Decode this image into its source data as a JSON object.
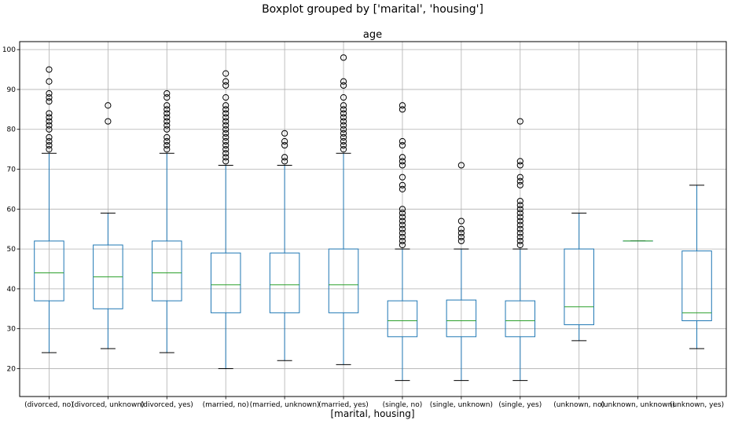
{
  "chart_data": {
    "type": "box",
    "title": "Boxplot grouped by ['marital', 'housing']",
    "subtitle": "age",
    "xlabel": "[marital, housing]",
    "ylabel": "",
    "ylim": [
      13,
      102
    ],
    "yticks": [
      20,
      30,
      40,
      50,
      60,
      70,
      80,
      90,
      100
    ],
    "grid": true,
    "colors": {
      "box": "#1f77b4",
      "median": "#2ca02c",
      "cap": "#000000",
      "flier": "#000000",
      "grid": "#b0b0b0"
    },
    "categories": [
      "(divorced, no)",
      "(divorced, unknown)",
      "(divorced, yes)",
      "(married, no)",
      "(married, unknown)",
      "(married, yes)",
      "(single, no)",
      "(single, unknown)",
      "(single, yes)",
      "(unknown, no)",
      "(unknown, unknown)",
      "(unknown, yes)"
    ],
    "boxes": [
      {
        "whislo": 24,
        "q1": 37,
        "med": 44,
        "q3": 52,
        "whishi": 74,
        "fliers": [
          75,
          76,
          77,
          78,
          80,
          81,
          82,
          83,
          84,
          87,
          88,
          89,
          92,
          95
        ]
      },
      {
        "whislo": 25,
        "q1": 35,
        "med": 43,
        "q3": 51,
        "whishi": 59,
        "fliers": [
          82,
          86
        ]
      },
      {
        "whislo": 24,
        "q1": 37,
        "med": 44,
        "q3": 52,
        "whishi": 74,
        "fliers": [
          75,
          76,
          77,
          78,
          80,
          81,
          82,
          83,
          84,
          85,
          86,
          88,
          89
        ]
      },
      {
        "whislo": 20,
        "q1": 34,
        "med": 41,
        "q3": 49,
        "whishi": 71,
        "fliers": [
          72,
          73,
          74,
          75,
          76,
          77,
          78,
          79,
          80,
          81,
          82,
          83,
          84,
          85,
          86,
          88,
          91,
          92,
          94
        ]
      },
      {
        "whislo": 22,
        "q1": 34,
        "med": 41,
        "q3": 49,
        "whishi": 71,
        "fliers": [
          72,
          73,
          76,
          77,
          79
        ]
      },
      {
        "whislo": 21,
        "q1": 34,
        "med": 41,
        "q3": 50,
        "whishi": 74,
        "fliers": [
          75,
          76,
          77,
          78,
          79,
          80,
          81,
          82,
          83,
          84,
          85,
          86,
          88,
          91,
          92,
          98
        ]
      },
      {
        "whislo": 17,
        "q1": 28,
        "med": 32,
        "q3": 37,
        "whishi": 50,
        "fliers": [
          51,
          52,
          53,
          54,
          55,
          56,
          57,
          58,
          59,
          60,
          65,
          66,
          68,
          71,
          72,
          73,
          76,
          77,
          85,
          86
        ]
      },
      {
        "whislo": 17,
        "q1": 28,
        "med": 32,
        "q3": 37.2,
        "whishi": 50,
        "fliers": [
          52,
          53,
          54,
          55,
          57,
          71
        ]
      },
      {
        "whislo": 17,
        "q1": 28,
        "med": 32,
        "q3": 37,
        "whishi": 50,
        "fliers": [
          51,
          52,
          53,
          54,
          55,
          56,
          57,
          58,
          59,
          60,
          61,
          62,
          66,
          67,
          68,
          71,
          72,
          82
        ]
      },
      {
        "whislo": 27,
        "q1": 31,
        "med": 35.5,
        "q3": 50,
        "whishi": 59,
        "fliers": []
      },
      {
        "whislo": 52,
        "q1": 52,
        "med": 52,
        "q3": 52,
        "whishi": 52,
        "fliers": []
      },
      {
        "whislo": 25,
        "q1": 32,
        "med": 34,
        "q3": 49.5,
        "whishi": 66,
        "fliers": []
      }
    ]
  }
}
